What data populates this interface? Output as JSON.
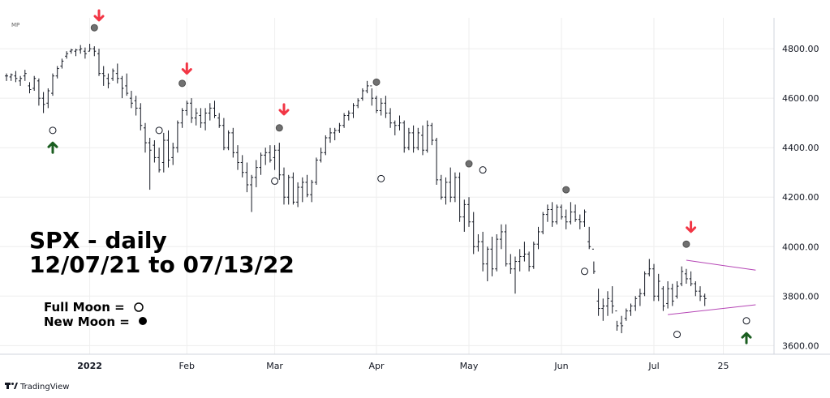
{
  "chart_data": {
    "type": "ohlc",
    "title_line1": "SPX - daily",
    "title_line2": "12/07/21 to 07/13/22",
    "corner_label": "MP",
    "brand": "TradingView",
    "y_ticks": [
      "4800.00",
      "4600.00",
      "4400.00",
      "4200.00",
      "4000.00",
      "3800.00",
      "3600.00"
    ],
    "y_tick_values": [
      4800,
      4600,
      4400,
      4200,
      4000,
      3800,
      3600
    ],
    "ylim": [
      3565,
      4925
    ],
    "x_labels": [
      "2022",
      "Feb",
      "Mar",
      "Apr",
      "May",
      "Jun",
      "Jul",
      "25"
    ],
    "x_label_index": [
      18,
      39,
      58,
      80,
      100,
      120,
      140,
      155
    ],
    "legend": {
      "full_moon": "Full Moon  =",
      "new_moon": "New Moon  ="
    },
    "bars": [
      [
        4690,
        4700,
        4670,
        4690
      ],
      [
        4686,
        4700,
        4670,
        4695
      ],
      [
        4690,
        4710,
        4665,
        4680
      ],
      [
        4670,
        4690,
        4650,
        4680
      ],
      [
        4690,
        4715,
        4670,
        4700
      ],
      [
        4650,
        4665,
        4620,
        4635
      ],
      [
        4640,
        4690,
        4630,
        4680
      ],
      [
        4670,
        4680,
        4570,
        4600
      ],
      [
        4600,
        4625,
        4540,
        4575
      ],
      [
        4580,
        4640,
        4560,
        4630
      ],
      [
        4620,
        4700,
        4610,
        4690
      ],
      [
        4690,
        4730,
        4680,
        4720
      ],
      [
        4730,
        4760,
        4720,
        4750
      ],
      [
        4770,
        4790,
        4760,
        4780
      ],
      [
        4790,
        4800,
        4780,
        4795
      ],
      [
        4790,
        4800,
        4770,
        4795
      ],
      [
        4795,
        4815,
        4780,
        4800
      ],
      [
        4790,
        4805,
        4760,
        4780
      ],
      [
        4790,
        4820,
        4790,
        4800
      ],
      [
        4800,
        4810,
        4770,
        4790
      ],
      [
        4780,
        4800,
        4690,
        4700
      ],
      [
        4700,
        4730,
        4650,
        4690
      ],
      [
        4680,
        4700,
        4640,
        4660
      ],
      [
        4680,
        4720,
        4670,
        4710
      ],
      [
        4700,
        4740,
        4660,
        4680
      ],
      [
        4680,
        4690,
        4600,
        4640
      ],
      [
        4650,
        4700,
        4610,
        4620
      ],
      [
        4600,
        4630,
        4560,
        4580
      ],
      [
        4590,
        4610,
        4530,
        4560
      ],
      [
        4560,
        4580,
        4470,
        4490
      ],
      [
        4480,
        4500,
        4380,
        4420
      ],
      [
        4420,
        4440,
        4230,
        4390
      ],
      [
        4410,
        4430,
        4340,
        4360
      ],
      [
        4360,
        4400,
        4300,
        4310
      ],
      [
        4340,
        4460,
        4300,
        4430
      ],
      [
        4430,
        4470,
        4320,
        4350
      ],
      [
        4360,
        4420,
        4330,
        4400
      ],
      [
        4400,
        4510,
        4380,
        4500
      ],
      [
        4500,
        4560,
        4480,
        4550
      ],
      [
        4550,
        4590,
        4530,
        4580
      ],
      [
        4580,
        4600,
        4500,
        4520
      ],
      [
        4520,
        4560,
        4490,
        4540
      ],
      [
        4530,
        4560,
        4480,
        4500
      ],
      [
        4500,
        4560,
        4470,
        4540
      ],
      [
        4540,
        4580,
        4510,
        4560
      ],
      [
        4560,
        4590,
        4520,
        4530
      ],
      [
        4520,
        4540,
        4480,
        4490
      ],
      [
        4490,
        4520,
        4390,
        4400
      ],
      [
        4400,
        4470,
        4390,
        4460
      ],
      [
        4460,
        4480,
        4360,
        4380
      ],
      [
        4380,
        4410,
        4310,
        4340
      ],
      [
        4340,
        4370,
        4280,
        4300
      ],
      [
        4300,
        4340,
        4220,
        4250
      ],
      [
        4250,
        4290,
        4140,
        4280
      ],
      [
        4280,
        4350,
        4240,
        4320
      ],
      [
        4320,
        4380,
        4290,
        4370
      ],
      [
        4370,
        4400,
        4330,
        4380
      ],
      [
        4380,
        4410,
        4340,
        4350
      ],
      [
        4360,
        4410,
        4310,
        4390
      ],
      [
        4390,
        4420,
        4270,
        4290
      ],
      [
        4290,
        4320,
        4170,
        4200
      ],
      [
        4200,
        4290,
        4170,
        4280
      ],
      [
        4280,
        4300,
        4170,
        4180
      ],
      [
        4180,
        4260,
        4160,
        4240
      ],
      [
        4240,
        4280,
        4180,
        4260
      ],
      [
        4260,
        4290,
        4200,
        4210
      ],
      [
        4210,
        4270,
        4180,
        4260
      ],
      [
        4260,
        4360,
        4250,
        4350
      ],
      [
        4350,
        4400,
        4340,
        4380
      ],
      [
        4380,
        4450,
        4370,
        4440
      ],
      [
        4440,
        4480,
        4420,
        4460
      ],
      [
        4460,
        4480,
        4430,
        4470
      ],
      [
        4470,
        4500,
        4460,
        4490
      ],
      [
        4490,
        4540,
        4480,
        4530
      ],
      [
        4530,
        4550,
        4510,
        4540
      ],
      [
        4540,
        4580,
        4520,
        4570
      ],
      [
        4570,
        4600,
        4560,
        4590
      ],
      [
        4600,
        4640,
        4590,
        4630
      ],
      [
        4630,
        4670,
        4620,
        4650
      ],
      [
        4650,
        4640,
        4570,
        4600
      ],
      [
        4600,
        4610,
        4540,
        4550
      ],
      [
        4550,
        4600,
        4530,
        4580
      ],
      [
        4580,
        4610,
        4520,
        4540
      ],
      [
        4540,
        4560,
        4480,
        4500
      ],
      [
        4500,
        4510,
        4450,
        4490
      ],
      [
        4490,
        4530,
        4470,
        4500
      ],
      [
        4500,
        4510,
        4380,
        4400
      ],
      [
        4400,
        4480,
        4390,
        4460
      ],
      [
        4460,
        4490,
        4380,
        4400
      ],
      [
        4400,
        4480,
        4390,
        4460
      ],
      [
        4450,
        4490,
        4370,
        4390
      ],
      [
        4390,
        4510,
        4380,
        4490
      ],
      [
        4490,
        4500,
        4410,
        4430
      ],
      [
        4430,
        4440,
        4250,
        4270
      ],
      [
        4270,
        4290,
        4190,
        4200
      ],
      [
        4200,
        4280,
        4170,
        4260
      ],
      [
        4260,
        4320,
        4180,
        4200
      ],
      [
        4200,
        4300,
        4180,
        4280
      ],
      [
        4280,
        4300,
        4100,
        4120
      ],
      [
        4120,
        4190,
        4060,
        4170
      ],
      [
        4170,
        4200,
        4080,
        4100
      ],
      [
        4100,
        4140,
        3970,
        4000
      ],
      [
        4000,
        4050,
        3980,
        4020
      ],
      [
        4020,
        4060,
        3900,
        3930
      ],
      [
        3930,
        4000,
        3860,
        3990
      ],
      [
        3990,
        4040,
        3880,
        3910
      ],
      [
        3910,
        4050,
        3900,
        4030
      ],
      [
        4030,
        4090,
        3990,
        4060
      ],
      [
        4060,
        4090,
        3920,
        3930
      ],
      [
        3930,
        3970,
        3890,
        3910
      ],
      [
        3910,
        3960,
        3810,
        3940
      ],
      [
        3940,
        3990,
        3900,
        3960
      ],
      [
        3960,
        4020,
        3940,
        3970
      ],
      [
        3970,
        3980,
        3900,
        3920
      ],
      [
        3920,
        4020,
        3910,
        4010
      ],
      [
        4010,
        4080,
        3990,
        4060
      ],
      [
        4060,
        4140,
        4050,
        4130
      ],
      [
        4130,
        4170,
        4100,
        4150
      ],
      [
        4150,
        4180,
        4080,
        4100
      ],
      [
        4100,
        4170,
        4090,
        4160
      ],
      [
        4160,
        4170,
        4110,
        4120
      ],
      [
        4120,
        4150,
        4070,
        4100
      ],
      [
        4100,
        4180,
        4090,
        4140
      ],
      [
        4140,
        4170,
        4100,
        4110
      ],
      [
        4110,
        4130,
        4070,
        4100
      ],
      [
        4100,
        4150,
        4080,
        4140
      ],
      [
        4020,
        4080,
        3990,
        4000
      ],
      [
        3990,
        3940,
        3890,
        3900
      ],
      [
        3780,
        3830,
        3720,
        3750
      ],
      [
        3750,
        3790,
        3700,
        3760
      ],
      [
        3760,
        3820,
        3720,
        3790
      ],
      [
        3780,
        3840,
        3730,
        3760
      ],
      [
        3740,
        3700,
        3660,
        3680
      ],
      [
        3690,
        3720,
        3650,
        3680
      ],
      [
        3710,
        3750,
        3700,
        3740
      ],
      [
        3740,
        3770,
        3720,
        3760
      ],
      [
        3760,
        3800,
        3740,
        3790
      ],
      [
        3800,
        3830,
        3760,
        3810
      ],
      [
        3810,
        3900,
        3800,
        3890
      ],
      [
        3890,
        3950,
        3880,
        3910
      ],
      [
        3910,
        3930,
        3780,
        3800
      ],
      [
        3800,
        3890,
        3780,
        3860
      ],
      [
        3830,
        3840,
        3740,
        3760
      ],
      [
        3770,
        3860,
        3750,
        3830
      ],
      [
        3830,
        3850,
        3760,
        3780
      ],
      [
        3800,
        3860,
        3790,
        3840
      ],
      [
        3850,
        3920,
        3840,
        3900
      ],
      [
        3890,
        3910,
        3850,
        3870
      ],
      [
        3870,
        3900,
        3840,
        3850
      ],
      [
        3850,
        3860,
        3800,
        3820
      ],
      [
        3820,
        3840,
        3780,
        3800
      ],
      [
        3800,
        3810,
        3760,
        3790
      ]
    ],
    "full_moons": [
      {
        "bar": 10,
        "value": 4470
      },
      {
        "bar": 33,
        "value": 4470
      },
      {
        "bar": 58,
        "value": 4265
      },
      {
        "bar": 81,
        "value": 4275
      },
      {
        "bar": 103,
        "value": 4310
      },
      {
        "bar": 125,
        "value": 3900
      },
      {
        "bar": 145,
        "value": 3645
      },
      {
        "bar": 160,
        "value": 3700
      }
    ],
    "new_moons": [
      {
        "bar": 19,
        "value": 4885
      },
      {
        "bar": 38,
        "value": 4660
      },
      {
        "bar": 59,
        "value": 4480
      },
      {
        "bar": 80,
        "value": 4665
      },
      {
        "bar": 100,
        "value": 4335
      },
      {
        "bar": 121,
        "value": 4230
      },
      {
        "bar": 147,
        "value": 4010
      }
    ],
    "down_arrows": [
      {
        "bar": 20,
        "value": 4935
      },
      {
        "bar": 39,
        "value": 4720
      },
      {
        "bar": 60,
        "value": 4555
      },
      {
        "bar": 148,
        "value": 4080
      }
    ],
    "up_arrows": [
      {
        "bar": 10,
        "value": 4400
      },
      {
        "bar": 160,
        "value": 3630
      }
    ],
    "triangle_upper": [
      [
        147,
        3945
      ],
      [
        162,
        3905
      ]
    ],
    "triangle_lower": [
      [
        143,
        3725
      ],
      [
        162,
        3765
      ]
    ],
    "colors": {
      "bar": "#131722",
      "down_arrow": "#f23645",
      "up_arrow": "#1b5e20",
      "new_moon": "#707070",
      "triangle": "#b545b5",
      "grid": "#eeeeee"
    }
  }
}
